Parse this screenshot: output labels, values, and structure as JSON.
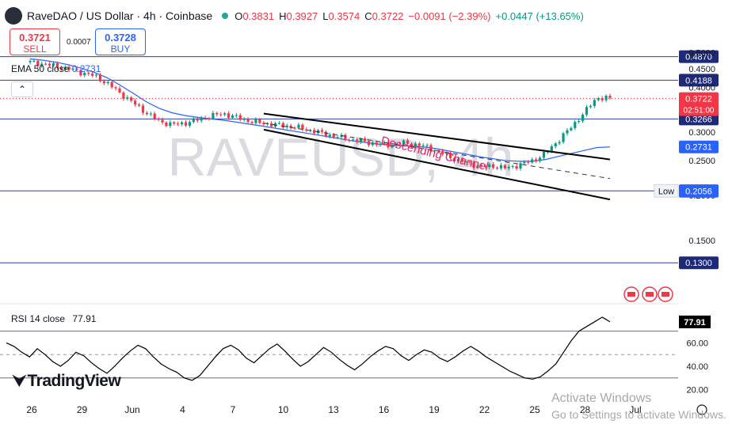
{
  "header": {
    "symbol": "RaveDAO / US Dollar · 4h · Coinbase",
    "open_label": "O",
    "open": "0.3831",
    "high_label": "H",
    "high": "0.3927",
    "low_label": "L",
    "low": "0.3574",
    "close_label": "C",
    "close": "0.3722",
    "change": "−0.0091 (−2.39%)",
    "change_extra": "+0.0447 (+13.65%)"
  },
  "trade": {
    "sell_price": "0.3721",
    "sell_label": "SELL",
    "buy_price": "0.3728",
    "buy_label": "BUY",
    "spread": "0.0007"
  },
  "ema": {
    "label": "EMA 50 close",
    "value": "0.2731"
  },
  "rsi_indicator": {
    "label": "RSI 14 close",
    "value": "77.91"
  },
  "watermark": "RAVEUSD, 4h",
  "branding": "TradingView",
  "windows_notice": {
    "line1": "Activate Windows",
    "line2": "Go to Settings to activate Windows."
  },
  "colors": {
    "up": "#089981",
    "down": "#f23645",
    "ema": "#2962ff",
    "levels": "#2a3f9e",
    "rsi": "#000000",
    "channel_label": "#e91e63"
  },
  "chart_data": [
    {
      "type": "candlestick",
      "title": "RaveDAO / US Dollar · 4h · Coinbase",
      "x_ticks": [
        "26",
        "29",
        "Jun",
        "4",
        "7",
        "10",
        "13",
        "16",
        "19",
        "22",
        "25",
        "28",
        "Jul"
      ],
      "y_ticks": [
        "0.5000",
        "0.4500",
        "0.4000",
        "0.3500",
        "0.3000",
        "0.2500",
        "0.2000",
        "0.1500"
      ],
      "yscale": "log",
      "ylim": [
        0.12,
        0.56
      ],
      "price_path": [
        0.47,
        0.465,
        0.458,
        0.45,
        0.44,
        0.43,
        0.41,
        0.385,
        0.362,
        0.34,
        0.322,
        0.315,
        0.318,
        0.325,
        0.333,
        0.338,
        0.33,
        0.322,
        0.318,
        0.315,
        0.312,
        0.308,
        0.302,
        0.296,
        0.29,
        0.286,
        0.282,
        0.278,
        0.276,
        0.28,
        0.277,
        0.272,
        0.262,
        0.252,
        0.246,
        0.24,
        0.242,
        0.238,
        0.244,
        0.25,
        0.262,
        0.285,
        0.31,
        0.34,
        0.375,
        0.372
      ],
      "ema50": [
        0.48,
        0.476,
        0.47,
        0.462,
        0.452,
        0.44,
        0.425,
        0.405,
        0.385,
        0.365,
        0.35,
        0.34,
        0.334,
        0.33,
        0.327,
        0.324,
        0.32,
        0.316,
        0.312,
        0.308,
        0.304,
        0.3,
        0.296,
        0.292,
        0.288,
        0.284,
        0.281,
        0.278,
        0.276,
        0.275,
        0.274,
        0.272,
        0.268,
        0.264,
        0.26,
        0.256,
        0.253,
        0.25,
        0.249,
        0.249,
        0.252,
        0.257,
        0.262,
        0.267,
        0.272,
        0.2731
      ],
      "horizontal_levels": [
        {
          "label": "0.4870",
          "value": 0.487
        },
        {
          "label": "0.4188",
          "value": 0.4188
        },
        {
          "label": "0.3266",
          "value": 0.3266
        },
        {
          "label": "0.2061",
          "value": 0.2061,
          "note": "Low"
        },
        {
          "label": "0.1300",
          "value": 0.13
        }
      ],
      "price_tags": [
        {
          "label": "0.3722",
          "sub": "02:51:00",
          "value": 0.3722
        },
        {
          "label": "0.2731",
          "value": 0.2731
        },
        {
          "label": "0.2056",
          "value": 0.2056
        }
      ],
      "annotation": "Descending Channel",
      "channel": {
        "upper": [
          {
            "date": "Jun 8",
            "price": 0.338
          },
          {
            "date": "Jun 28 12:00",
            "price": 0.252
          }
        ],
        "middle": [
          {
            "date": "Jun 8",
            "price": 0.318
          },
          {
            "date": "Jun 28 12:00",
            "price": 0.223
          }
        ],
        "lower": [
          {
            "date": "Jun 8",
            "price": 0.305
          },
          {
            "date": "Jun 28 12:00",
            "price": 0.195
          }
        ]
      }
    },
    {
      "type": "line",
      "title": "RSI 14 close",
      "y_ticks": [
        "60.00",
        "40.00",
        "20.00"
      ],
      "ylim": [
        15,
        88
      ],
      "reference_lines": [
        70,
        50,
        30
      ],
      "values": [
        60,
        57,
        52,
        48,
        55,
        50,
        44,
        40,
        45,
        52,
        49,
        43,
        38,
        34,
        40,
        47,
        53,
        58,
        55,
        48,
        42,
        38,
        35,
        30,
        28,
        32,
        40,
        48,
        55,
        58,
        54,
        47,
        43,
        49,
        55,
        59,
        53,
        46,
        40,
        44,
        50,
        56,
        52,
        46,
        41,
        37,
        42,
        48,
        53,
        57,
        55,
        49,
        45,
        50,
        54,
        52,
        47,
        44,
        48,
        53,
        57,
        53,
        48,
        44,
        40,
        36,
        33,
        30,
        29,
        31,
        36,
        42,
        52,
        62,
        70,
        74,
        78,
        82,
        77.91
      ],
      "current": 77.91
    }
  ]
}
